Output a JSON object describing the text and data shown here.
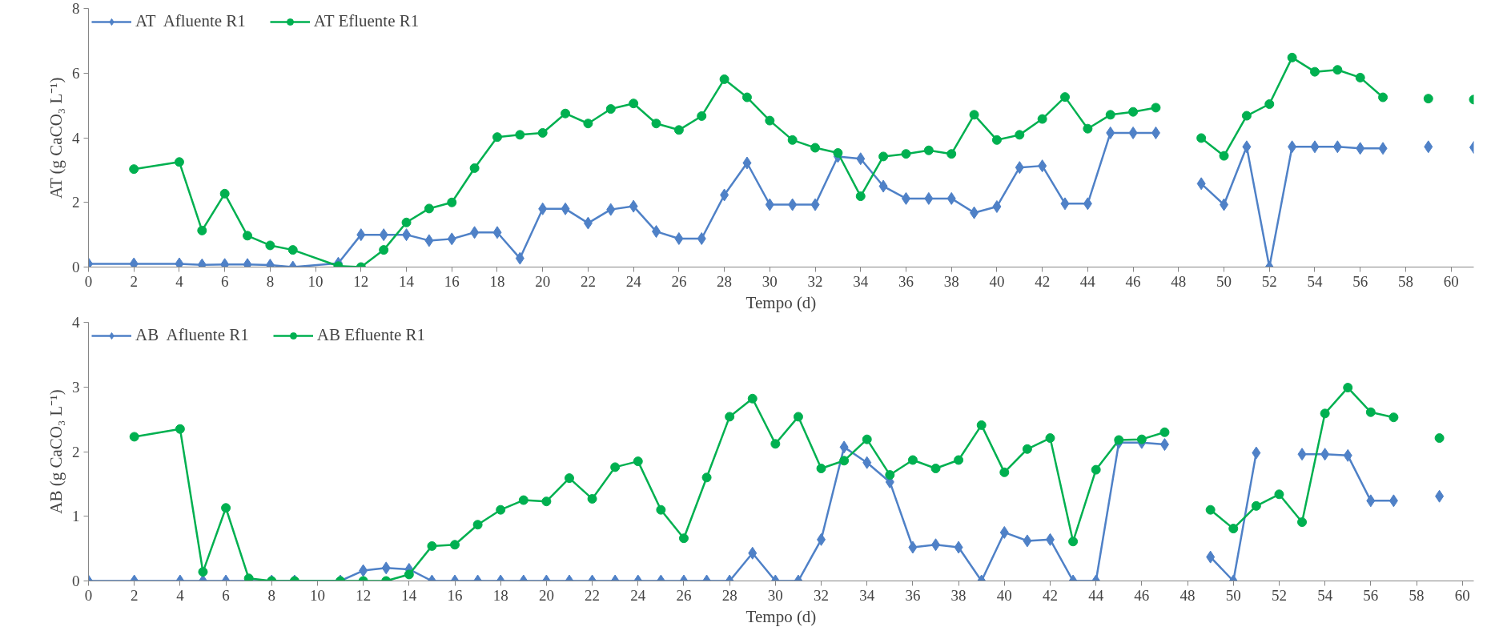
{
  "chart_data": [
    {
      "type": "line",
      "xlabel": "Tempo (d)",
      "ylabel": "AT (g CaCO₃ L⁻¹)",
      "xlim": [
        0,
        61
      ],
      "xticks": [
        0,
        2,
        4,
        6,
        8,
        10,
        12,
        14,
        16,
        18,
        20,
        22,
        24,
        26,
        28,
        30,
        32,
        34,
        36,
        38,
        40,
        42,
        44,
        46,
        48,
        50,
        52,
        54,
        56,
        58,
        60
      ],
      "ylim": [
        0,
        8
      ],
      "yticks": [
        0,
        2,
        4,
        6,
        8
      ],
      "grid": false,
      "legend": "top left",
      "series": [
        {
          "name": "AT  Afluente R1",
          "color": "#4f81c7",
          "marker": "diamond",
          "x": [
            0,
            2,
            4,
            5,
            6,
            7,
            8,
            9,
            11,
            12,
            13,
            14,
            15,
            16,
            17,
            18,
            19,
            20,
            21,
            22,
            23,
            24,
            25,
            26,
            27,
            28,
            29,
            30,
            31,
            32,
            33,
            34,
            35,
            36,
            37,
            38,
            39,
            40,
            41,
            42,
            43,
            44,
            45,
            46,
            47,
            48,
            49,
            50,
            51,
            52,
            53,
            54,
            55,
            56,
            57,
            58,
            59,
            60,
            61
          ],
          "values": [
            0.1,
            0.1,
            0.1,
            0.07,
            0.08,
            0.08,
            0.06,
            0,
            0.12,
            1.0,
            1.0,
            1.0,
            0.82,
            0.87,
            1.07,
            1.07,
            0.27,
            1.8,
            1.8,
            1.36,
            1.78,
            1.88,
            1.1,
            0.88,
            0.88,
            2.23,
            3.22,
            1.93,
            1.93,
            1.93,
            3.42,
            3.35,
            2.5,
            2.12,
            2.12,
            2.12,
            1.68,
            1.87,
            3.08,
            3.13,
            1.96,
            1.96,
            4.15,
            4.15,
            4.15,
            null,
            2.58,
            1.93,
            3.72,
            0,
            3.72,
            3.72,
            3.72,
            3.67,
            3.67,
            null,
            3.72,
            null,
            3.7
          ]
        },
        {
          "name": "AT Efluente R1",
          "color": "#00b050",
          "marker": "circle",
          "x": [
            2,
            4,
            5,
            6,
            7,
            8,
            9,
            11,
            12,
            13,
            14,
            15,
            16,
            17,
            18,
            19,
            20,
            21,
            22,
            23,
            24,
            25,
            26,
            27,
            28,
            29,
            30,
            31,
            32,
            33,
            34,
            35,
            36,
            37,
            38,
            39,
            40,
            41,
            42,
            43,
            44,
            45,
            46,
            47,
            48,
            49,
            50,
            51,
            52,
            53,
            54,
            55,
            56,
            57,
            58,
            59,
            60,
            61
          ],
          "values": [
            3.03,
            3.25,
            1.13,
            2.27,
            0.97,
            0.67,
            0.53,
            0.03,
            0,
            0.53,
            1.38,
            1.81,
            2.0,
            3.06,
            4.02,
            4.09,
            4.15,
            4.75,
            4.44,
            4.89,
            5.06,
            4.44,
            4.24,
            4.67,
            5.81,
            5.25,
            4.53,
            3.93,
            3.69,
            3.53,
            2.19,
            3.42,
            3.5,
            3.61,
            3.5,
            4.71,
            3.93,
            4.09,
            4.58,
            5.26,
            4.28,
            4.71,
            4.8,
            4.93,
            null,
            3.99,
            3.44,
            4.68,
            5.04,
            6.48,
            6.04,
            6.1,
            5.86,
            5.25,
            null,
            5.21,
            null,
            5.18
          ]
        }
      ]
    },
    {
      "type": "line",
      "xlabel": "Tempo (d)",
      "ylabel": "AB (g CaCO₃ L⁻¹)",
      "xlim": [
        0,
        60.5
      ],
      "xticks": [
        0,
        2,
        4,
        6,
        8,
        10,
        12,
        14,
        16,
        18,
        20,
        22,
        24,
        26,
        28,
        30,
        32,
        34,
        36,
        38,
        40,
        42,
        44,
        46,
        48,
        50,
        52,
        54,
        56,
        58,
        60
      ],
      "ylim": [
        0,
        4
      ],
      "yticks": [
        0,
        1,
        2,
        3,
        4
      ],
      "grid": false,
      "legend": "top left",
      "series": [
        {
          "name": "AB  Afluente R1",
          "color": "#4f81c7",
          "marker": "diamond",
          "x": [
            0,
            2,
            4,
            5,
            6,
            7,
            8,
            9,
            11,
            12,
            13,
            14,
            15,
            16,
            17,
            18,
            19,
            20,
            21,
            22,
            23,
            24,
            25,
            26,
            27,
            28,
            29,
            30,
            31,
            32,
            33,
            34,
            35,
            36,
            37,
            38,
            39,
            40,
            41,
            42,
            43,
            44,
            45,
            46,
            47,
            48,
            49,
            50,
            51,
            52,
            53,
            54,
            55,
            56,
            57,
            58,
            59
          ],
          "values": [
            0,
            0,
            0,
            0,
            0,
            0,
            0,
            0,
            0,
            0.16,
            0.2,
            0.18,
            0,
            0,
            0,
            0,
            0,
            0,
            0,
            0,
            0,
            0,
            0,
            0,
            0,
            0,
            0.43,
            0,
            0,
            0.64,
            2.07,
            1.83,
            1.53,
            0.52,
            0.56,
            0.52,
            0,
            0.75,
            0.62,
            0.64,
            0,
            0,
            2.14,
            2.14,
            2.11,
            null,
            0.37,
            0,
            1.98,
            null,
            1.96,
            1.96,
            1.94,
            1.24,
            1.24,
            null,
            1.31
          ]
        },
        {
          "name": "AB Efluente R1",
          "color": "#00b050",
          "marker": "circle",
          "x": [
            2,
            4,
            5,
            6,
            7,
            8,
            9,
            11,
            12,
            13,
            14,
            15,
            16,
            17,
            18,
            19,
            20,
            21,
            22,
            23,
            24,
            25,
            26,
            27,
            28,
            29,
            30,
            31,
            32,
            33,
            34,
            35,
            36,
            37,
            38,
            39,
            40,
            41,
            42,
            43,
            44,
            45,
            46,
            47,
            48,
            49,
            50,
            51,
            52,
            53,
            54,
            55,
            56,
            57,
            58,
            59
          ],
          "values": [
            2.23,
            2.35,
            0.14,
            1.13,
            0.04,
            0,
            0,
            0,
            0,
            0,
            0.1,
            0.54,
            0.56,
            0.87,
            1.1,
            1.25,
            1.23,
            1.59,
            1.27,
            1.76,
            1.85,
            1.1,
            0.66,
            1.6,
            2.54,
            2.82,
            2.12,
            2.54,
            1.74,
            1.86,
            2.19,
            1.64,
            1.87,
            1.74,
            1.87,
            2.41,
            1.68,
            2.04,
            2.21,
            0.61,
            1.72,
            2.18,
            2.19,
            2.3,
            null,
            1.1,
            0.81,
            1.16,
            1.34,
            0.91,
            2.59,
            2.99,
            2.61,
            2.53,
            null,
            2.21
          ]
        }
      ]
    }
  ]
}
